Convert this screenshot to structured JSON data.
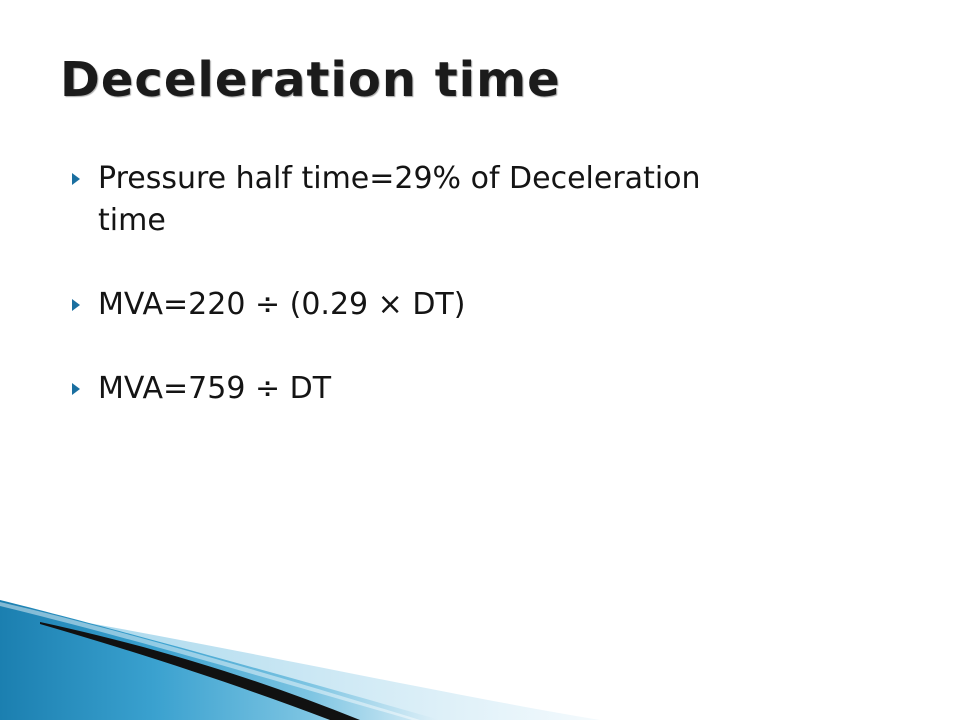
{
  "slide": {
    "title": "Deceleration time",
    "bullets": [
      {
        "line1": "Pressure half time=29% of Deceleration",
        "line2": "time"
      },
      {
        "line1": "MVA=220 ÷ (0.29 × DT)"
      },
      {
        "line1": "MVA=759 ÷ DT"
      }
    ]
  },
  "colors": {
    "bullet_marker": "#1a6fa0",
    "swoosh_blue": "#2a8fbf",
    "swoosh_light": "#7cc4e2",
    "swoosh_dark": "#111111"
  }
}
